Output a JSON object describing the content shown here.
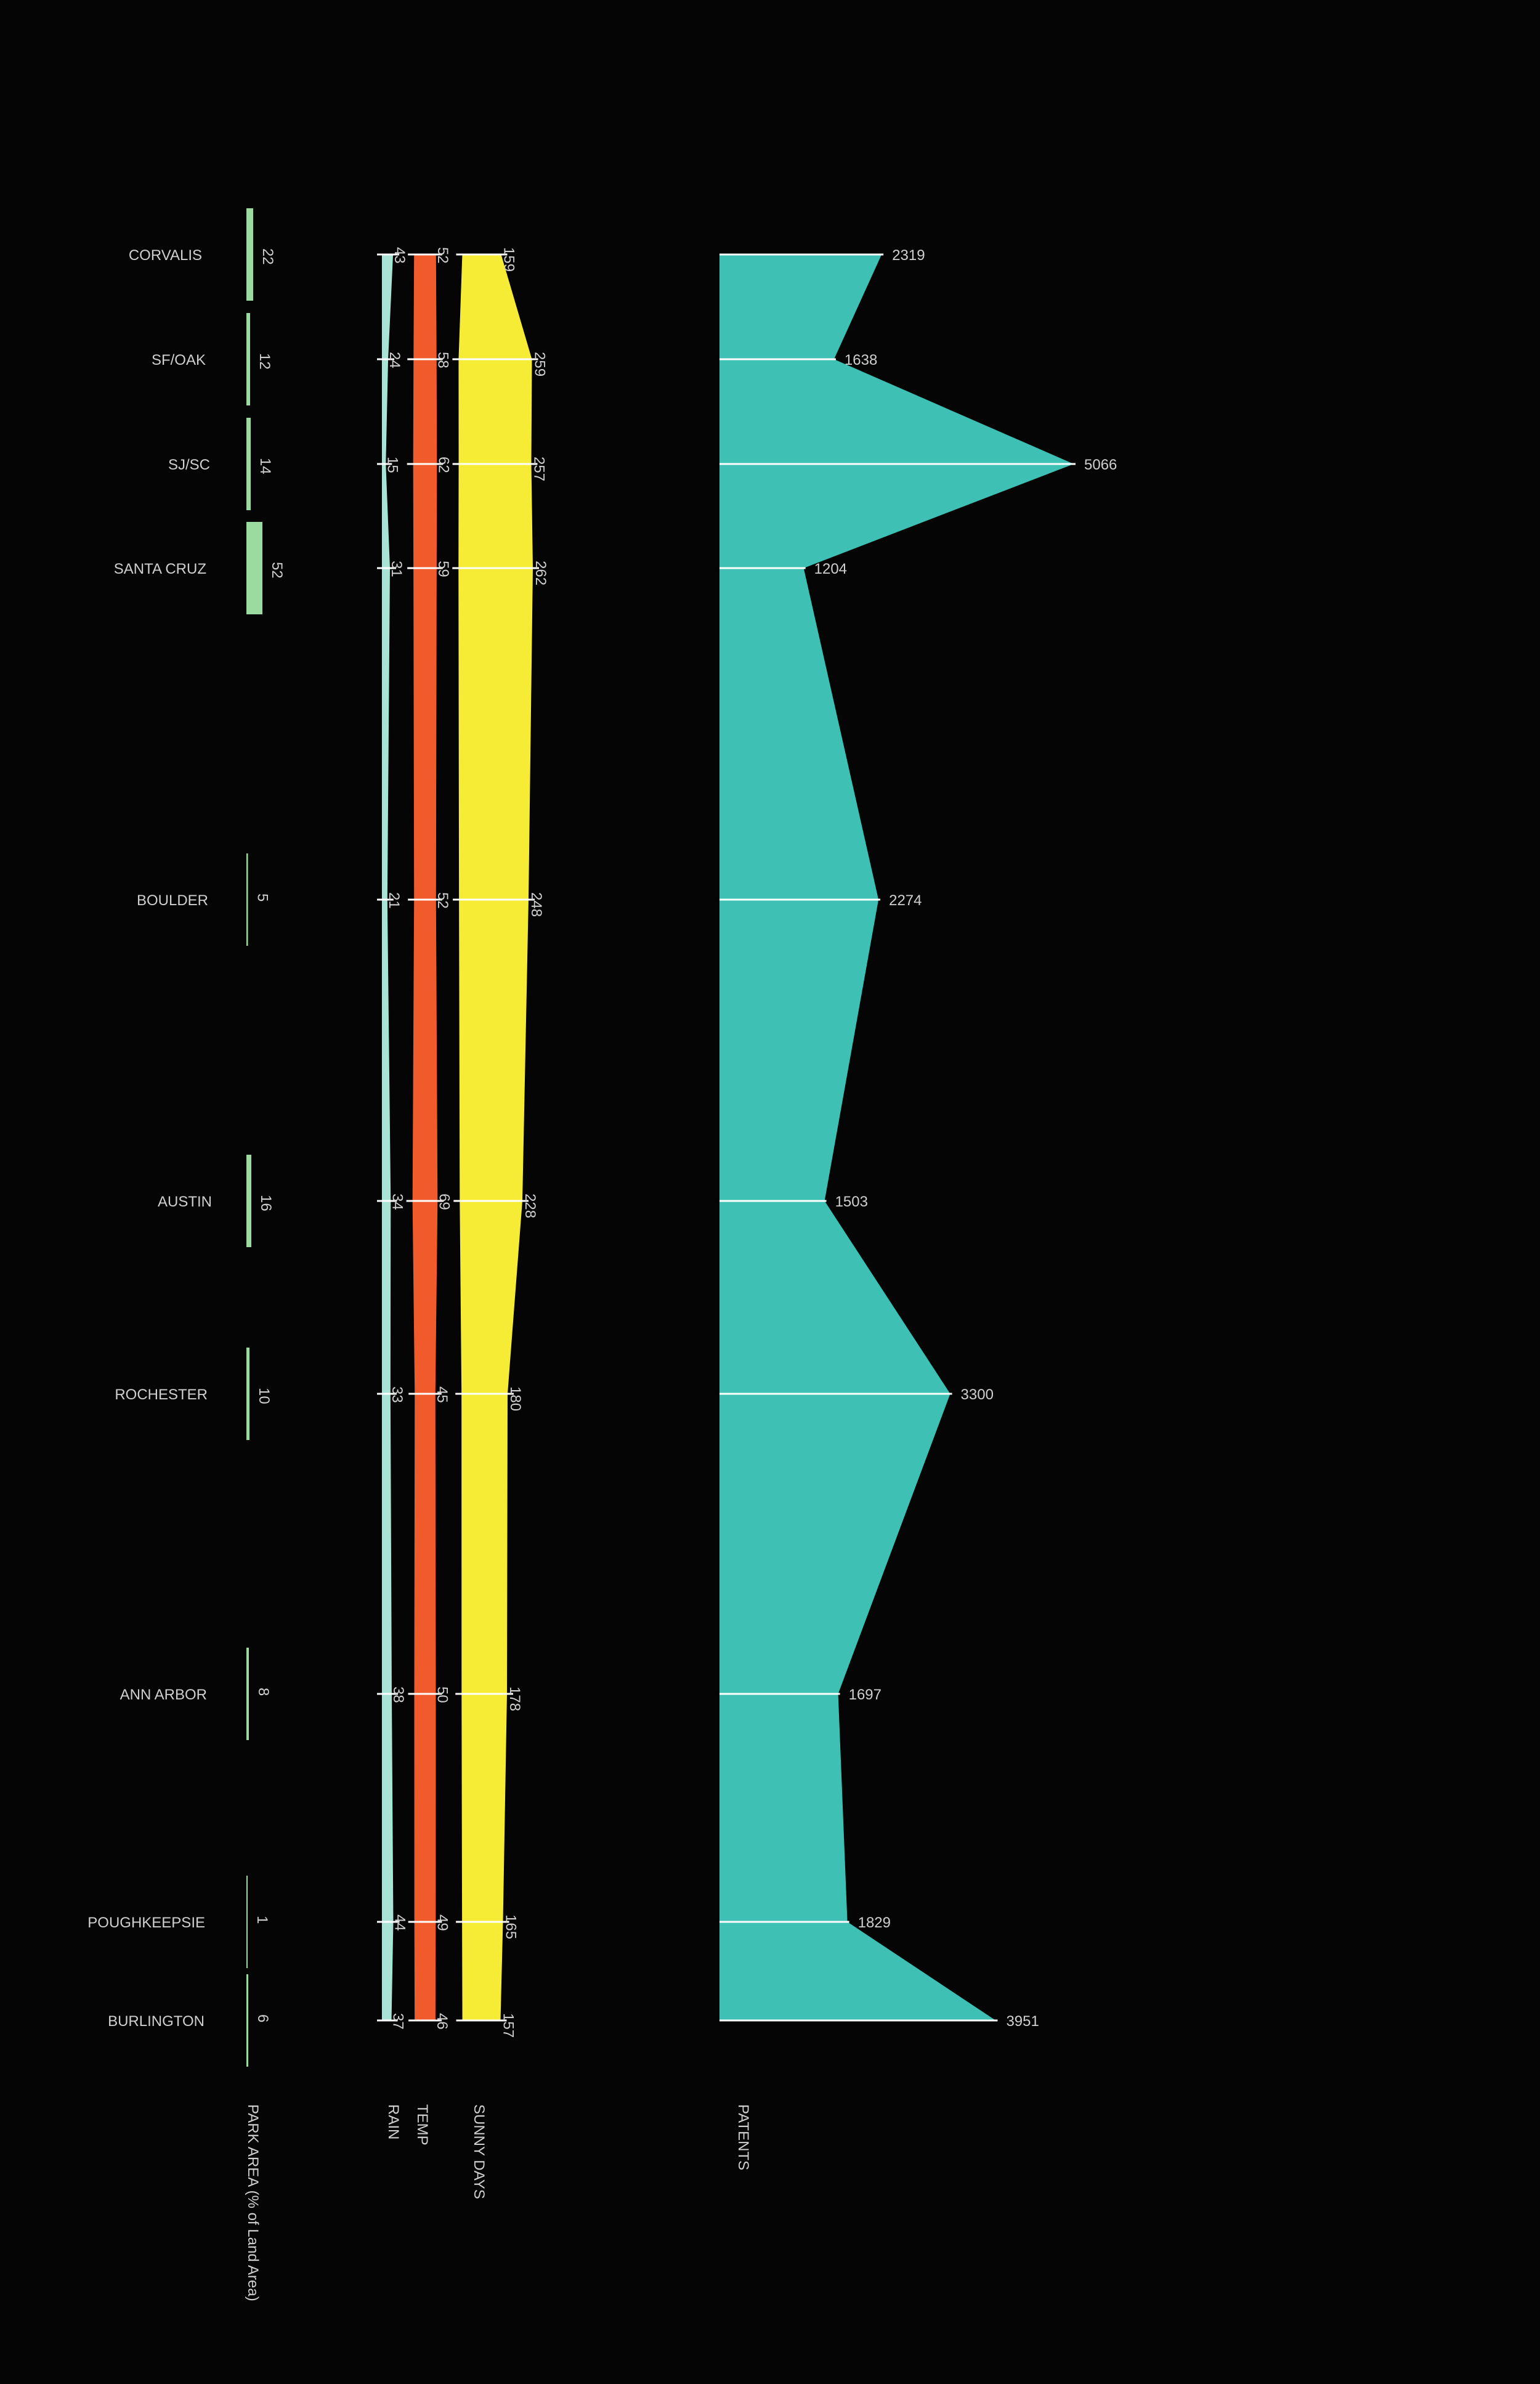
{
  "chart_data": {
    "type": "area",
    "title": "",
    "cities": [
      "CORVALIS",
      "SF/OAK",
      "SJ/SC",
      "SANTA CRUZ",
      "BOULDER",
      "AUSTIN",
      "ROCHESTER",
      "ANN ARBOR",
      "POUGHKEEPSIE",
      "BURLINGTON"
    ],
    "series": [
      {
        "name": "PARK AREA (% of Land Area)",
        "key": "park",
        "color": "#9bdb9f",
        "values": [
          22,
          12,
          14,
          52,
          5,
          16,
          10,
          8,
          1,
          6
        ]
      },
      {
        "name": "RAIN",
        "key": "rain",
        "color": "#a8e3d5",
        "values": [
          43,
          24,
          15,
          31,
          21,
          34,
          33,
          38,
          44,
          37
        ]
      },
      {
        "name": "TEMP",
        "key": "temp",
        "color": "#f15a2b",
        "values": [
          52,
          58,
          62,
          59,
          52,
          69,
          45,
          50,
          49,
          46
        ]
      },
      {
        "name": "SUNNY DAYS",
        "key": "sunny",
        "color": "#f7ec35",
        "values": [
          159,
          259,
          257,
          262,
          248,
          228,
          180,
          178,
          165,
          157
        ]
      },
      {
        "name": "PATENTS",
        "key": "patents",
        "color": "#3ec1b4",
        "values": [
          2319,
          1638,
          5066,
          1204,
          2274,
          1503,
          3300,
          1697,
          1829,
          3951
        ]
      }
    ],
    "background": "#050505",
    "label_color": "#cfcfcf",
    "tick_color": "#ffffff"
  }
}
